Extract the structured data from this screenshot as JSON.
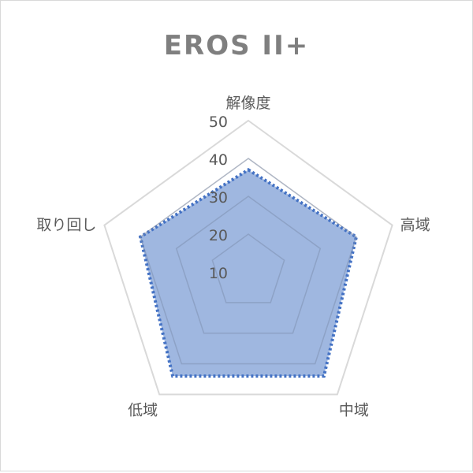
{
  "chart_data": {
    "type": "radar",
    "title": "EROS II+",
    "categories": [
      "解像度",
      "高域",
      "中域",
      "低域",
      "取り回し"
    ],
    "series": [
      {
        "values": [
          37,
          40,
          44,
          44,
          40
        ]
      }
    ],
    "rlim": [
      10,
      50
    ],
    "ticks": [
      "10",
      "20",
      "30",
      "40",
      "50"
    ],
    "grid": true,
    "legend": "none",
    "colors": {
      "fill": "#8eaadb",
      "line": "#4472c4",
      "grid": "#d9d9d9",
      "title": "#7f7f7f"
    }
  }
}
